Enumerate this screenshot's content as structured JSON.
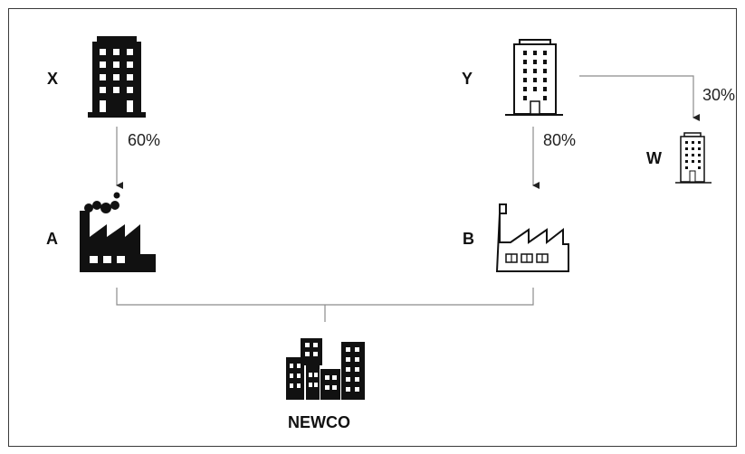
{
  "nodes": {
    "x": {
      "label": "X",
      "icon": "office-building-solid-icon"
    },
    "y": {
      "label": "Y",
      "icon": "office-building-outline-icon"
    },
    "w": {
      "label": "W",
      "icon": "office-building-outline-icon"
    },
    "a": {
      "label": "A",
      "icon": "factory-solid-icon"
    },
    "b": {
      "label": "B",
      "icon": "factory-outline-icon"
    },
    "newco": {
      "label": "NEWCO",
      "icon": "city-buildings-icon"
    }
  },
  "edges": {
    "x_to_a": {
      "from": "X",
      "to": "A",
      "label": "60%"
    },
    "y_to_b": {
      "from": "Y",
      "to": "B",
      "label": "80%"
    },
    "y_to_w": {
      "from": "Y",
      "to": "W",
      "label": "30%"
    }
  },
  "colors": {
    "ink": "#111111",
    "line": "#8c8c8c",
    "frame": "#3a3a3a"
  }
}
